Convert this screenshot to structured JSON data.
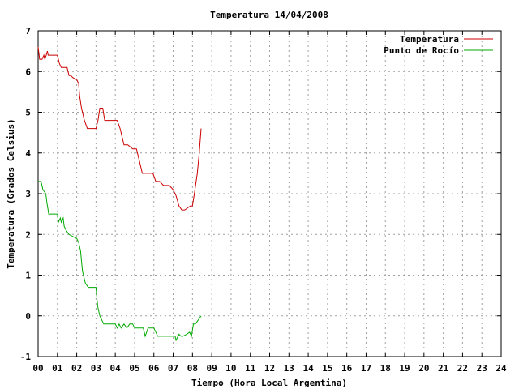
{
  "chart_data": {
    "type": "line",
    "title": "Temperatura 14/04/2008",
    "xlabel": "Tiempo (Hora Local Argentina)",
    "ylabel": "Temperatura (Grados Celsius)",
    "xlim": [
      0,
      24
    ],
    "ylim": [
      -1,
      7
    ],
    "xticks": [
      "00",
      "01",
      "02",
      "03",
      "04",
      "05",
      "06",
      "07",
      "08",
      "09",
      "10",
      "11",
      "12",
      "13",
      "14",
      "15",
      "16",
      "17",
      "18",
      "19",
      "20",
      "21",
      "22",
      "23",
      "24"
    ],
    "yticks": [
      "-1",
      "0",
      "1",
      "2",
      "3",
      "4",
      "5",
      "6",
      "7"
    ],
    "grid": true,
    "legend_position": "top-right",
    "series": [
      {
        "name": "Temperatura",
        "color": "#cc0000",
        "x": [
          0.0,
          0.08,
          0.15,
          0.2,
          0.3,
          0.35,
          0.42,
          0.48,
          0.52,
          0.6,
          0.7,
          0.8,
          1.0,
          1.1,
          1.2,
          1.35,
          1.5,
          1.6,
          1.7,
          1.8,
          2.0,
          2.1,
          2.15,
          2.25,
          2.4,
          2.55,
          2.7,
          2.85,
          3.0,
          3.1,
          3.2,
          3.35,
          3.45,
          3.6,
          3.75,
          3.9,
          4.1,
          4.25,
          4.45,
          4.65,
          4.9,
          5.1,
          5.25,
          5.4,
          5.6,
          5.75,
          5.95,
          6.1,
          6.3,
          6.5,
          6.65,
          6.8,
          7.0,
          7.15,
          7.3,
          7.45,
          7.6,
          7.75,
          7.9,
          8.0,
          8.1,
          8.25,
          8.35,
          8.45
        ],
        "y": [
          6.6,
          6.3,
          6.3,
          6.3,
          6.4,
          6.3,
          6.4,
          6.5,
          6.4,
          6.4,
          6.4,
          6.4,
          6.4,
          6.2,
          6.1,
          6.1,
          6.1,
          5.9,
          5.9,
          5.85,
          5.8,
          5.7,
          5.4,
          5.1,
          4.8,
          4.6,
          4.6,
          4.6,
          4.6,
          4.8,
          5.1,
          5.1,
          4.8,
          4.8,
          4.8,
          4.8,
          4.8,
          4.6,
          4.2,
          4.2,
          4.1,
          4.1,
          3.8,
          3.5,
          3.5,
          3.5,
          3.5,
          3.3,
          3.3,
          3.2,
          3.2,
          3.2,
          3.1,
          2.95,
          2.7,
          2.6,
          2.6,
          2.65,
          2.7,
          2.7,
          3.0,
          3.5,
          4.0,
          4.6
        ]
      },
      {
        "name": "Punto de Rocío",
        "color": "#00aa00",
        "x": [
          0.0,
          0.05,
          0.15,
          0.25,
          0.4,
          0.45,
          0.55,
          0.65,
          0.8,
          1.0,
          1.05,
          1.15,
          1.2,
          1.3,
          1.35,
          1.45,
          1.6,
          1.8,
          2.0,
          2.1,
          2.2,
          2.3,
          2.45,
          2.6,
          2.75,
          2.9,
          3.0,
          3.05,
          3.1,
          3.2,
          3.3,
          3.4,
          3.5,
          3.65,
          3.8,
          4.0,
          4.1,
          4.2,
          4.3,
          4.45,
          4.6,
          4.75,
          4.9,
          5.0,
          5.1,
          5.2,
          5.3,
          5.45,
          5.55,
          5.7,
          5.85,
          6.0,
          6.2,
          6.4,
          6.6,
          6.8,
          7.0,
          7.1,
          7.15,
          7.3,
          7.4,
          7.5,
          7.7,
          7.85,
          7.95,
          8.05,
          8.15,
          8.3,
          8.45
        ],
        "y": [
          3.3,
          3.3,
          3.3,
          3.1,
          3.0,
          2.8,
          2.5,
          2.5,
          2.5,
          2.5,
          2.3,
          2.4,
          2.3,
          2.4,
          2.2,
          2.1,
          2.0,
          1.95,
          1.9,
          1.8,
          1.6,
          1.1,
          0.8,
          0.7,
          0.7,
          0.7,
          0.7,
          0.4,
          0.2,
          0.0,
          -0.1,
          -0.2,
          -0.2,
          -0.2,
          -0.2,
          -0.2,
          -0.3,
          -0.2,
          -0.3,
          -0.2,
          -0.3,
          -0.2,
          -0.2,
          -0.3,
          -0.3,
          -0.3,
          -0.3,
          -0.3,
          -0.5,
          -0.3,
          -0.3,
          -0.3,
          -0.5,
          -0.5,
          -0.5,
          -0.5,
          -0.5,
          -0.5,
          -0.6,
          -0.45,
          -0.5,
          -0.5,
          -0.45,
          -0.4,
          -0.5,
          -0.2,
          -0.2,
          -0.1,
          0.0
        ]
      }
    ]
  }
}
